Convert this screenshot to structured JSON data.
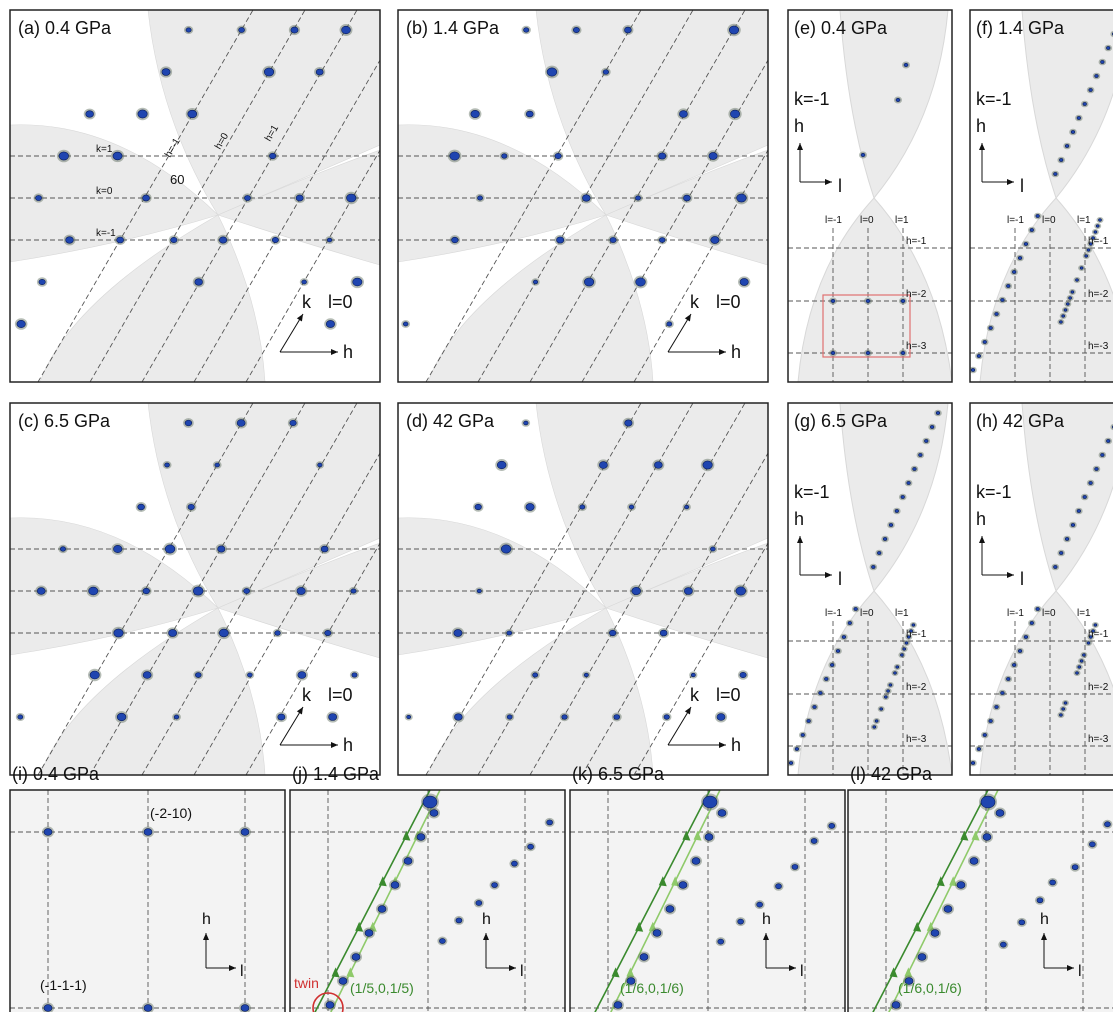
{
  "large_panels": [
    {
      "title": "(a) 0.4 GPa",
      "axis_up": "k",
      "plane": "l=0",
      "axis_right": "h",
      "k_lines": [
        "k=1",
        "k=0",
        "k=-1"
      ],
      "h_lines": [
        "h=-1",
        "h=0",
        "h=1"
      ],
      "angle": "60"
    },
    {
      "title": "(b) 1.4 GPa",
      "axis_up": "k",
      "plane": "l=0",
      "axis_right": "h"
    },
    {
      "title": "(c) 6.5 GPa",
      "axis_up": "k",
      "plane": "l=0",
      "axis_right": "h"
    },
    {
      "title": "(d) 42 GPa",
      "axis_up": "k",
      "plane": "l=0",
      "axis_right": "h"
    }
  ],
  "strip_panels": [
    {
      "title": "(e) 0.4 GPa",
      "fixed": "k=-1",
      "axis_up": "h",
      "axis_right": "l",
      "columns": [
        "l=-1",
        "l=0",
        "l=1"
      ],
      "rows": [
        "h=-1",
        "h=-2",
        "h=-3"
      ]
    },
    {
      "title": "(f) 1.4 GPa",
      "fixed": "k=-1",
      "axis_up": "h",
      "axis_right": "l",
      "columns": [
        "l=-1",
        "l=0",
        "l=1"
      ],
      "rows": [
        "h=-1",
        "h=-2",
        "h=-3"
      ]
    },
    {
      "title": "(g) 6.5 GPa",
      "fixed": "k=-1",
      "axis_up": "h",
      "axis_right": "l",
      "columns": [
        "l=-1",
        "l=0",
        "l=1"
      ],
      "rows": [
        "h=-1",
        "h=-2",
        "h=-3"
      ]
    },
    {
      "title": "(h) 42 GPa",
      "fixed": "k=-1",
      "axis_up": "h",
      "axis_right": "l",
      "columns": [
        "l=-1",
        "l=0",
        "l=1"
      ],
      "rows": [
        "h=-1",
        "h=-2",
        "h=-3"
      ]
    }
  ],
  "zoom_panels": [
    {
      "title": "(i) 0.4 GPa",
      "axis_up": "h",
      "axis_right": "l",
      "peaks": [
        "(-2-10)",
        "(-1-1-1)"
      ]
    },
    {
      "title": "(j) 1.4 GPa",
      "axis_up": "h",
      "axis_right": "l",
      "twin": "twin",
      "modulation": "(1/5,0,1/5)"
    },
    {
      "title": "(k) 6.5 GPa",
      "axis_up": "h",
      "axis_right": "l",
      "modulation": "(1/6,0,1/6)"
    },
    {
      "title": "(l) 42 GPa",
      "axis_up": "h",
      "axis_right": "l",
      "modulation": "(1/6,0,1/6)"
    }
  ]
}
